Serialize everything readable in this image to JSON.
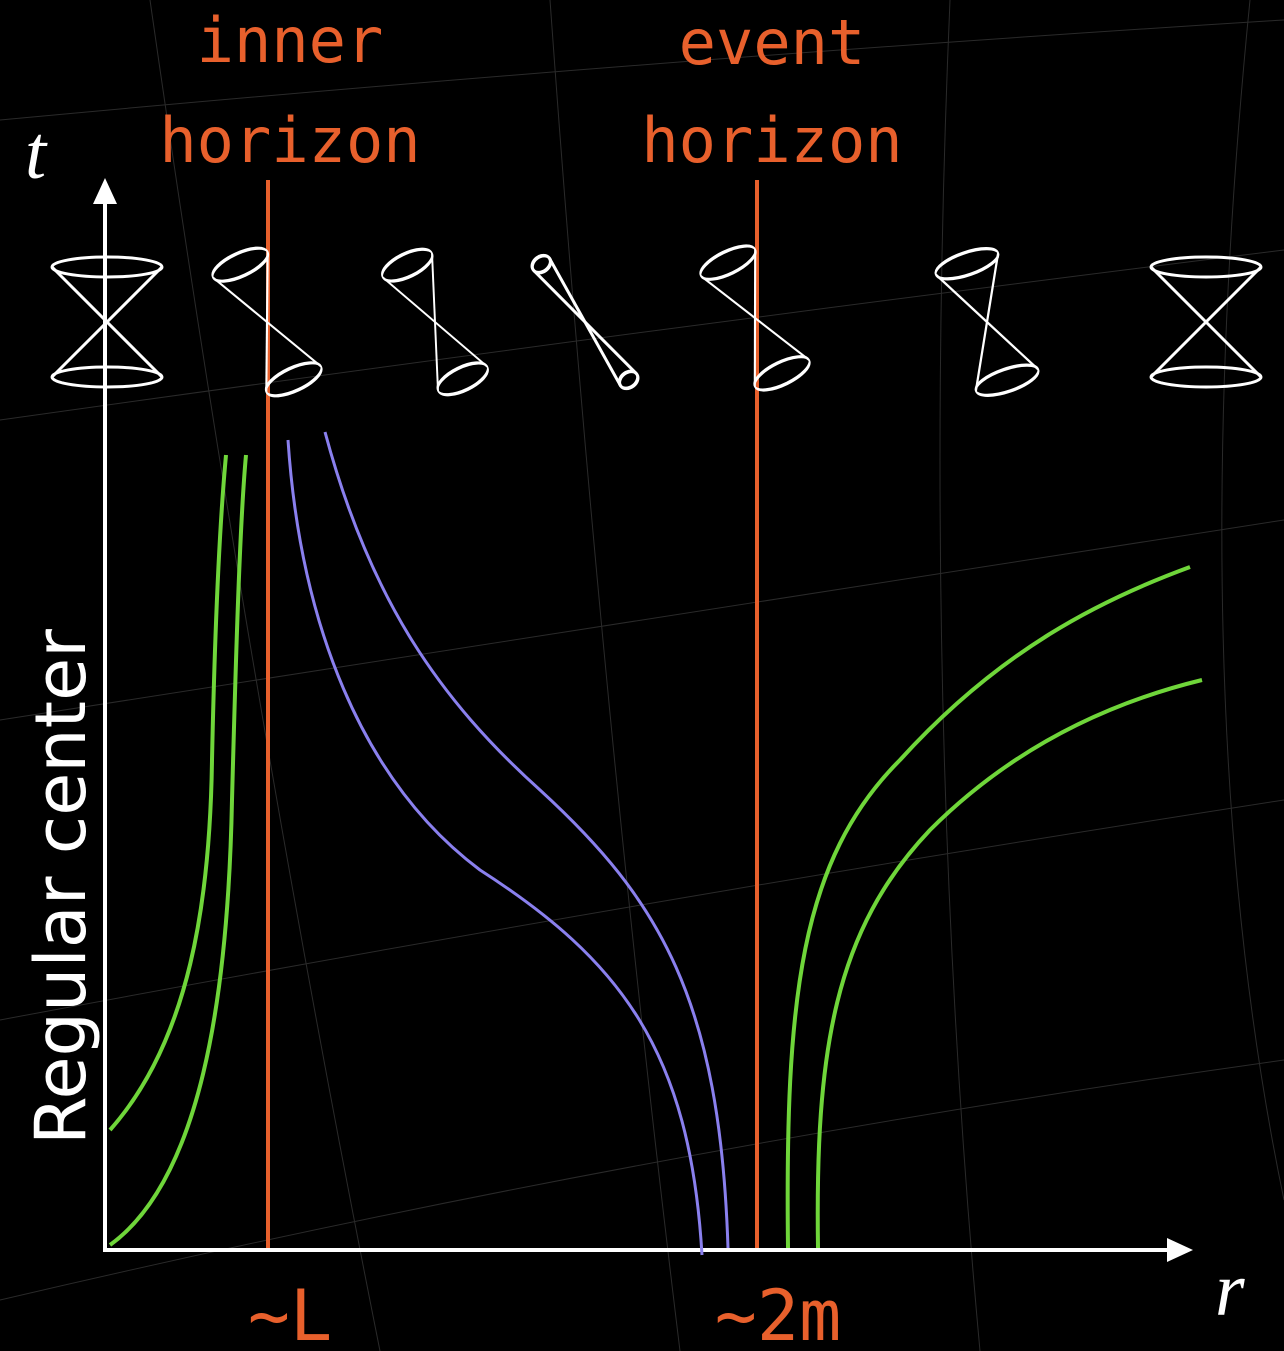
{
  "axes": {
    "t": "t",
    "r": "r"
  },
  "center_label": "Regular center",
  "horizons": [
    {
      "lines": [
        "inner",
        "horizon"
      ],
      "marker": "~L"
    },
    {
      "lines": [
        "event",
        "horizon"
      ],
      "marker": "~2m"
    }
  ]
}
